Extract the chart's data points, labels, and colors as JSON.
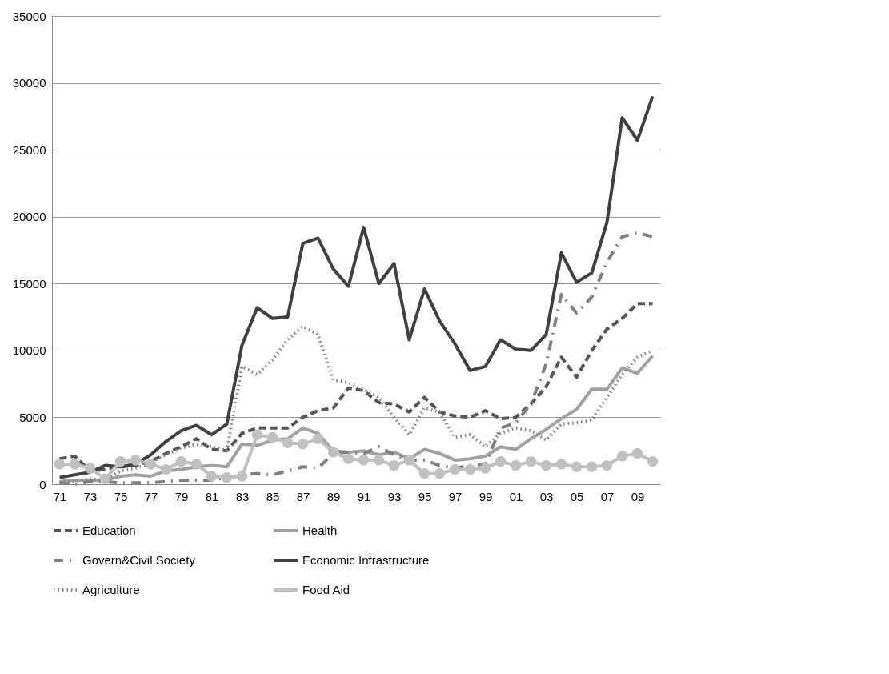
{
  "chart_data": {
    "type": "line",
    "categories": [
      "71",
      null,
      "73",
      null,
      "75",
      null,
      "77",
      null,
      "79",
      null,
      "81",
      null,
      "83",
      null,
      "85",
      null,
      "87",
      null,
      "89",
      null,
      "91",
      null,
      "93",
      null,
      "95",
      null,
      "97",
      null,
      "99",
      null,
      "01",
      null,
      "03",
      null,
      "05",
      null,
      "07",
      null,
      "09",
      null
    ],
    "ylim": [
      0,
      35000
    ],
    "yticks": [
      0,
      5000,
      10000,
      15000,
      20000,
      25000,
      30000,
      35000
    ],
    "grid": "y",
    "legend": "bottom",
    "series": [
      {
        "name": "Education",
        "color": "#555555",
        "line_style": "dashed",
        "values": [
          1900,
          2100,
          1000,
          1100,
          1300,
          1400,
          1700,
          2300,
          2800,
          3400,
          2600,
          2500,
          3800,
          4200,
          4200,
          4200,
          5000,
          5500,
          5700,
          7200,
          7000,
          6100,
          6000,
          5400,
          6500,
          5400,
          5100,
          5000,
          5500,
          4900,
          5000,
          6000,
          7300,
          9500,
          8000,
          10000,
          11600,
          12400,
          13500,
          13500
        ]
      },
      {
        "name": "Health",
        "color": "#a0a0a0",
        "line_style": "solid",
        "values": [
          200,
          300,
          300,
          300,
          600,
          700,
          600,
          1000,
          1100,
          1300,
          1400,
          1300,
          3000,
          2900,
          3300,
          3400,
          4200,
          3800,
          2500,
          2400,
          2500,
          2200,
          2400,
          1900,
          2600,
          2300,
          1800,
          1900,
          2100,
          2800,
          2600,
          3400,
          4100,
          4900,
          5600,
          7100,
          7100,
          8700,
          8300,
          9600
        ]
      },
      {
        "name": "Govern&Civil Society",
        "color": "#7f7f7f",
        "line_style": "dashdot",
        "values": [
          100,
          0,
          200,
          200,
          100,
          100,
          100,
          200,
          300,
          300,
          300,
          500,
          700,
          800,
          700,
          1000,
          1300,
          1200,
          2300,
          2400,
          2300,
          2800,
          2200,
          1800,
          1800,
          1400,
          1200,
          1400,
          1500,
          4200,
          4600,
          6000,
          9000,
          14200,
          12800,
          14000,
          16600,
          18500,
          18800,
          18500
        ]
      },
      {
        "name": "Economic Infrastructure",
        "color": "#404040",
        "line_style": "solid",
        "values": [
          500,
          700,
          900,
          1400,
          1300,
          1500,
          2200,
          3200,
          4000,
          4400,
          3700,
          4500,
          10400,
          13200,
          12400,
          12500,
          18000,
          18400,
          16100,
          14800,
          19200,
          15000,
          16500,
          10800,
          14600,
          12200,
          10500,
          8500,
          8800,
          10800,
          10100,
          10000,
          11200,
          17300,
          15100,
          15800,
          19600,
          27400,
          25700,
          29000
        ]
      },
      {
        "name": "Agriculture",
        "color": "#808080",
        "line_style": "dotted",
        "values": [
          100,
          200,
          400,
          300,
          1000,
          1200,
          1600,
          2200,
          2700,
          3000,
          2800,
          2500,
          8800,
          8200,
          9300,
          10800,
          11800,
          11200,
          7800,
          7600,
          7100,
          6500,
          5000,
          3700,
          5700,
          5400,
          3500,
          3700,
          2800,
          3800,
          4200,
          4000,
          3300,
          4500,
          4600,
          4800,
          6500,
          8200,
          9500,
          10000
        ]
      },
      {
        "name": "Food Aid",
        "color": "#c0c0c0",
        "line_style": "solid",
        "marker": "circle",
        "values": [
          1500,
          1500,
          1200,
          400,
          1700,
          1800,
          1500,
          1100,
          1700,
          1500,
          600,
          500,
          600,
          3700,
          3500,
          3100,
          3000,
          3400,
          2400,
          1900,
          1800,
          1800,
          1400,
          1800,
          800,
          800,
          1100,
          1100,
          1200,
          1700,
          1400,
          1700,
          1400,
          1500,
          1300,
          1300,
          1400,
          2100,
          2300,
          1700
        ]
      }
    ]
  }
}
